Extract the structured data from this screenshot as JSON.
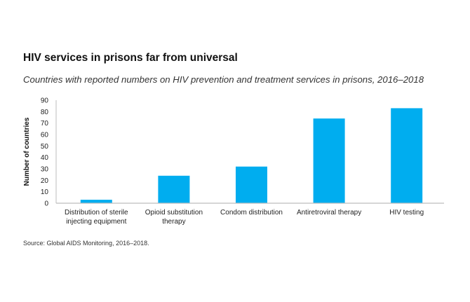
{
  "title": "HIV services in prisons far from universal",
  "subtitle": "Countries with reported numbers on HIV prevention and treatment services in prisons, 2016–2018",
  "source": "Source: Global AIDS Monitoring, 2016–2018.",
  "colors": {
    "bar": "#00adef",
    "axis": "#bdbdbd"
  },
  "chart_data": {
    "type": "bar",
    "title": "HIV services in prisons far from universal",
    "subtitle": "Countries with reported numbers on HIV prevention and treatment services in prisons, 2016–2018",
    "xlabel": "",
    "ylabel": "Number of countries",
    "ylim": [
      0,
      90
    ],
    "yticks": [
      0,
      10,
      20,
      30,
      40,
      50,
      60,
      70,
      80,
      90
    ],
    "grid": false,
    "legend": "none",
    "categories": [
      [
        "Distribution of sterile",
        "injecting equipment"
      ],
      [
        "Opioid substitution",
        "therapy"
      ],
      [
        "Condom distribution"
      ],
      [
        "Antiretroviral therapy"
      ],
      [
        "HIV testing"
      ]
    ],
    "values": [
      3,
      24,
      32,
      74,
      83
    ]
  }
}
